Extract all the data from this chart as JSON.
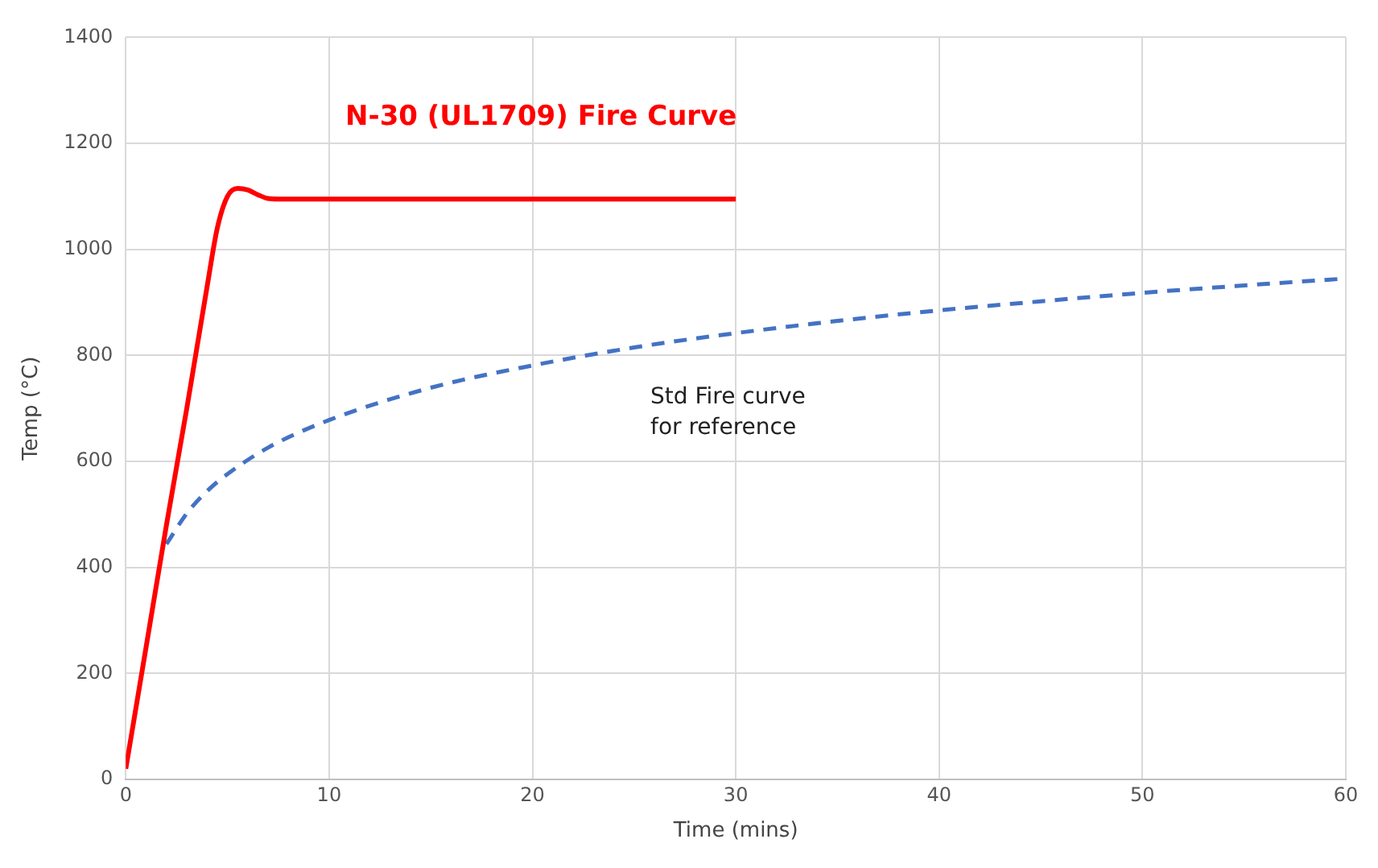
{
  "chart_data": {
    "type": "line",
    "xlabel": "Time (mins)",
    "ylabel": "Temp (°C)",
    "xlim": [
      0,
      60
    ],
    "xticks": [
      0,
      10,
      20,
      30,
      40,
      50,
      60
    ],
    "ylim": [
      0,
      1400
    ],
    "yticks": [
      0,
      200,
      400,
      600,
      800,
      1000,
      1200,
      1400
    ],
    "grid": true,
    "legend": false,
    "marker": "none",
    "series": [
      {
        "name": "N-30 (UL1709) Fire Curve",
        "color": "#ff0000",
        "line_style": "solid",
        "x": [
          0,
          1,
          2,
          3,
          4,
          4.5,
          5,
          5.5,
          6,
          6.5,
          7,
          7.5,
          10,
          20,
          30
        ],
        "values": [
          20,
          250,
          480,
          700,
          930,
          1040,
          1100,
          1115,
          1112,
          1103,
          1096,
          1095,
          1095,
          1095,
          1095
        ]
      },
      {
        "name": "Std Fire curve\nfor reference",
        "color": "#4472c4",
        "line_style": "dashed",
        "x": [
          2,
          3,
          4,
          5,
          7,
          10,
          15,
          20,
          25,
          30,
          35,
          40,
          45,
          50,
          55,
          60
        ],
        "values": [
          444,
          502,
          544,
          576,
          626,
          678,
          739,
          781,
          815,
          842,
          865,
          885,
          902,
          918,
          932,
          945
        ]
      }
    ]
  }
}
